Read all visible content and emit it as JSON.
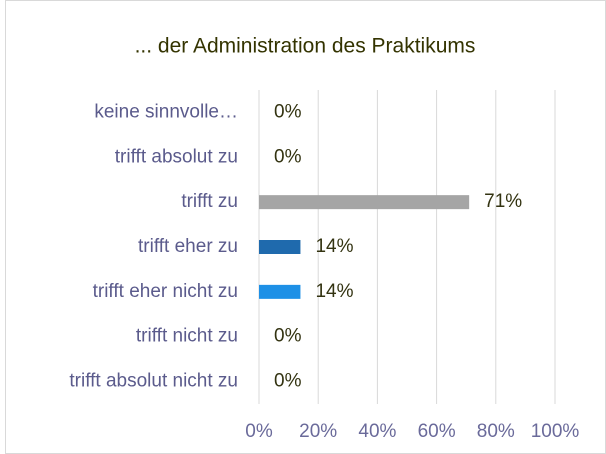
{
  "chart_data": {
    "type": "barh",
    "title": "... der Administration des Praktikums",
    "categories": [
      "keine sinnvolle…",
      "trifft absolut zu",
      "trifft zu",
      "trifft eher zu",
      "trifft eher nicht zu",
      "trifft nicht zu",
      "trifft absolut nicht zu"
    ],
    "values": [
      0,
      0,
      71,
      14,
      14,
      0,
      0
    ],
    "value_labels": [
      "0%",
      "0%",
      "71%",
      "14%",
      "14%",
      "0%",
      "0%"
    ],
    "colors": [
      null,
      null,
      "#a5a5a5",
      "#1f6aad",
      "#1e90e6",
      null,
      null
    ],
    "xlim": [
      0,
      100
    ],
    "xticks": [
      {
        "value": 0,
        "label": "0%"
      },
      {
        "value": 20,
        "label": "20%"
      },
      {
        "value": 40,
        "label": "40%"
      },
      {
        "value": 60,
        "label": "60%"
      },
      {
        "value": 80,
        "label": "80%"
      },
      {
        "value": 100,
        "label": "100%"
      }
    ],
    "grid": true
  }
}
